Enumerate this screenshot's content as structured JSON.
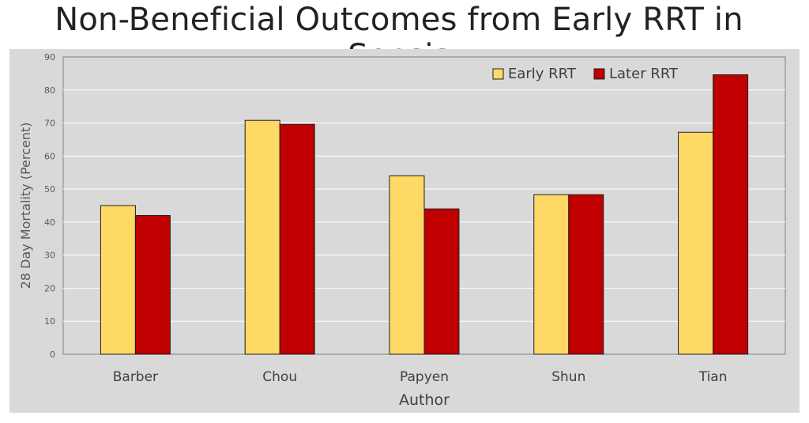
{
  "chart_data": {
    "type": "bar",
    "title": "Non-Beneficial Outcomes from Early RRT in Sepsis",
    "xlabel": "Author",
    "ylabel": "28 Day Mortality (Percent)",
    "categories": [
      "Barber",
      "Chou",
      "Papyen",
      "Shun",
      "Tian"
    ],
    "series": [
      {
        "name": "Early RRT",
        "color": "#ffd966",
        "values": [
          45,
          70.8,
          54,
          48.3,
          67.2
        ]
      },
      {
        "name": "Later RRT",
        "color": "#c00000",
        "values": [
          42,
          69.6,
          44,
          48.3,
          84.6
        ]
      }
    ],
    "ylim": [
      0,
      90
    ],
    "yticks": [
      0,
      10,
      20,
      30,
      40,
      50,
      60,
      70,
      80,
      90
    ],
    "grid": true,
    "legend_position": "top-right",
    "background": "#d9d9d9",
    "plot_background": "#d9d9d9"
  }
}
